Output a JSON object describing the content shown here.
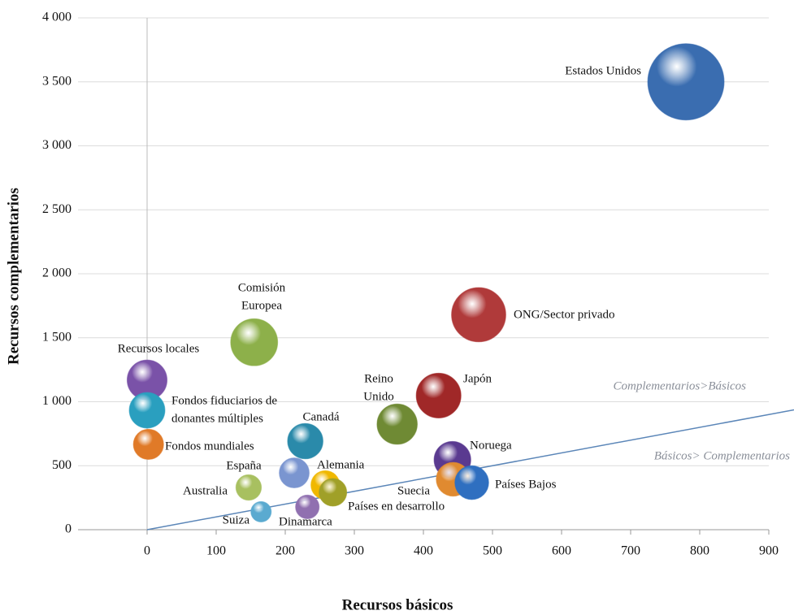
{
  "chart_data": {
    "type": "bubble",
    "x_label": "Recursos básicos",
    "y_label": "Recursos complementarios",
    "xlim": [
      -100,
      900
    ],
    "ylim": [
      0,
      4000
    ],
    "xticks": [
      0,
      100,
      200,
      300,
      400,
      500,
      600,
      700,
      800,
      900
    ],
    "yticks": [
      0,
      500,
      {
        "value": 1000,
        "label": "1 000"
      },
      {
        "value": 1500,
        "label": "1 500"
      },
      {
        "value": 2000,
        "label": "2 000"
      },
      {
        "value": 2500,
        "label": "2 500"
      },
      {
        "value": 3000,
        "label": "3 000"
      },
      {
        "value": 3500,
        "label": "3 500"
      },
      {
        "value": 4000,
        "label": "4 000"
      }
    ],
    "grid": true,
    "annotations": [
      "Complementarios>Básicos",
      "Básicos> Complementarios"
    ],
    "points": [
      {
        "name": [
          "Estados Unidos"
        ],
        "x": 780,
        "y": 3500,
        "size": 4280,
        "color": "#3a6db0"
      },
      {
        "name": [
          "ONG/Sector privado"
        ],
        "x": 480,
        "y": 1680,
        "size": 2160,
        "color": "#b03a3a"
      },
      {
        "name": [
          "Comisión",
          "Europea"
        ],
        "x": 155,
        "y": 1465,
        "size": 1620,
        "color": "#8db04a"
      },
      {
        "name": [
          "Japón"
        ],
        "x": 422,
        "y": 1048,
        "size": 1470,
        "color": "#a02828"
      },
      {
        "name": [
          "Recursos locales"
        ],
        "x": 0,
        "y": 1170,
        "size": 1170,
        "color": "#7a52a8"
      },
      {
        "name": [
          "Reino",
          "Unido"
        ],
        "x": 362,
        "y": 825,
        "size": 1190,
        "color": "#6f8a34"
      },
      {
        "name": [
          "Fondos fiduciarios de",
          "donantes múltiples"
        ],
        "x": 0,
        "y": 933,
        "size": 933,
        "color": "#2a9fbf"
      },
      {
        "name": [
          "Canadá"
        ],
        "x": 229,
        "y": 692,
        "size": 920,
        "color": "#2a8aaa"
      },
      {
        "name": [
          "Noruega"
        ],
        "x": 442,
        "y": 546,
        "size": 990,
        "color": "#5a3a90"
      },
      {
        "name": [
          "Fondos mundiales"
        ],
        "x": 2,
        "y": 667,
        "size": 669,
        "color": "#e07a28"
      },
      {
        "name": [
          "España"
        ],
        "x": 213,
        "y": 444,
        "size": 657,
        "color": "#7a95d0"
      },
      {
        "name": [
          "Suecia"
        ],
        "x": 443,
        "y": 394,
        "size": 837,
        "color": "#e08a30"
      },
      {
        "name": [
          "Países Bajos"
        ],
        "x": 470,
        "y": 368,
        "size": 838,
        "color": "#2f6fc0"
      },
      {
        "name": [
          "Alemania"
        ],
        "x": 258,
        "y": 349,
        "size": 607,
        "color": "#f0b800"
      },
      {
        "name": [
          "Países en desarrollo"
        ],
        "x": 269,
        "y": 292,
        "size": 561,
        "color": "#a0a028"
      },
      {
        "name": [
          "Australia"
        ],
        "x": 147,
        "y": 330,
        "size": 477,
        "color": "#a8c060"
      },
      {
        "name": [
          "Dinamarca"
        ],
        "x": 232,
        "y": 178,
        "size": 410,
        "color": "#9070b0"
      },
      {
        "name": [
          "Suiza"
        ],
        "x": 165,
        "y": 140,
        "size": 305,
        "color": "#5aaad0"
      }
    ]
  }
}
